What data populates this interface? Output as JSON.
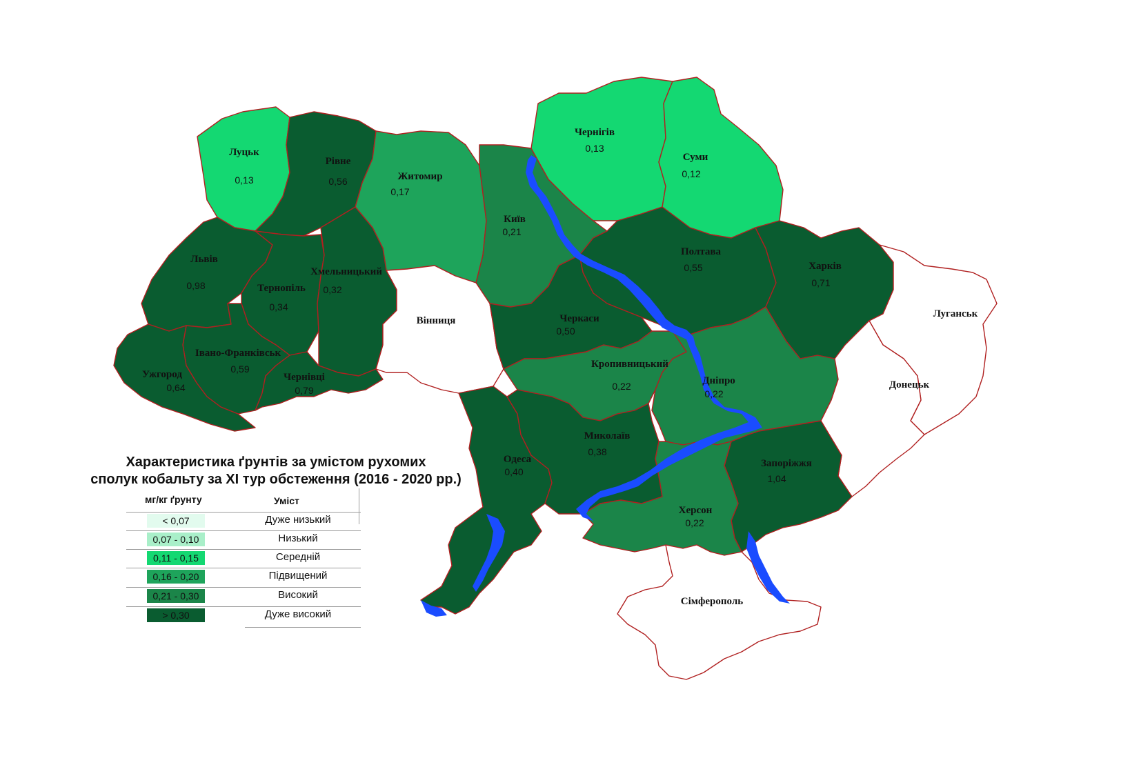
{
  "legend": {
    "title_line1": "Характеристика ґрунтів за умістом рухомих",
    "title_line2": "сполук кобальту за XI тур обстеження (2016 - 2020 рр.)",
    "col_unit": "мг/кг ґрунту",
    "col_content": "Уміст",
    "items": [
      {
        "range": "< 0,07",
        "label": "Дуже низький",
        "color": "#e2fbee"
      },
      {
        "range": "0,07 - 0,10",
        "label": "Низький",
        "color": "#a9efc9"
      },
      {
        "range": "0,11 - 0,15",
        "label": "Середній",
        "color": "#14d872"
      },
      {
        "range": "0,16 - 0,20",
        "label": "Підвищений",
        "color": "#1ea45b"
      },
      {
        "range": "0,21 - 0,30",
        "label": "Високий",
        "color": "#1b8549"
      },
      {
        "range": "> 0,30",
        "label": "Дуже високий",
        "color": "#0a5c30"
      }
    ]
  },
  "colors": {
    "border": "#b02020",
    "water": "#1a4cff",
    "no_data": "#ffffff"
  },
  "regions": [
    {
      "name": "Луцьк",
      "value": "0,13"
    },
    {
      "name": "Рівне",
      "value": "0,56"
    },
    {
      "name": "Житомир",
      "value": "0,17"
    },
    {
      "name": "Київ",
      "value": "0,21"
    },
    {
      "name": "Чернігів",
      "value": "0,13"
    },
    {
      "name": "Суми",
      "value": "0,12"
    },
    {
      "name": "Львів",
      "value": "0,98"
    },
    {
      "name": "Тернопіль",
      "value": "0,34"
    },
    {
      "name": "Хмельницький",
      "value": "0,32"
    },
    {
      "name": "Вінниця",
      "value": ""
    },
    {
      "name": "Полтава",
      "value": "0,55"
    },
    {
      "name": "Харків",
      "value": "0,71"
    },
    {
      "name": "Луганськ",
      "value": ""
    },
    {
      "name": "Черкаси",
      "value": "0,50"
    },
    {
      "name": "Івано-Франківськ",
      "value": "0,59"
    },
    {
      "name": "Ужгород",
      "value": "0,64"
    },
    {
      "name": "Чернівці",
      "value": "0,79"
    },
    {
      "name": "Кропивницький",
      "value": "0,22"
    },
    {
      "name": "Дніпро",
      "value": "0,22"
    },
    {
      "name": "Донецьк",
      "value": ""
    },
    {
      "name": "Одеса",
      "value": "0,40"
    },
    {
      "name": "Миколаїв",
      "value": "0,38"
    },
    {
      "name": "Запоріжжя",
      "value": "1,04"
    },
    {
      "name": "Херсон",
      "value": "0,22"
    },
    {
      "name": "Сімферополь",
      "value": ""
    }
  ]
}
